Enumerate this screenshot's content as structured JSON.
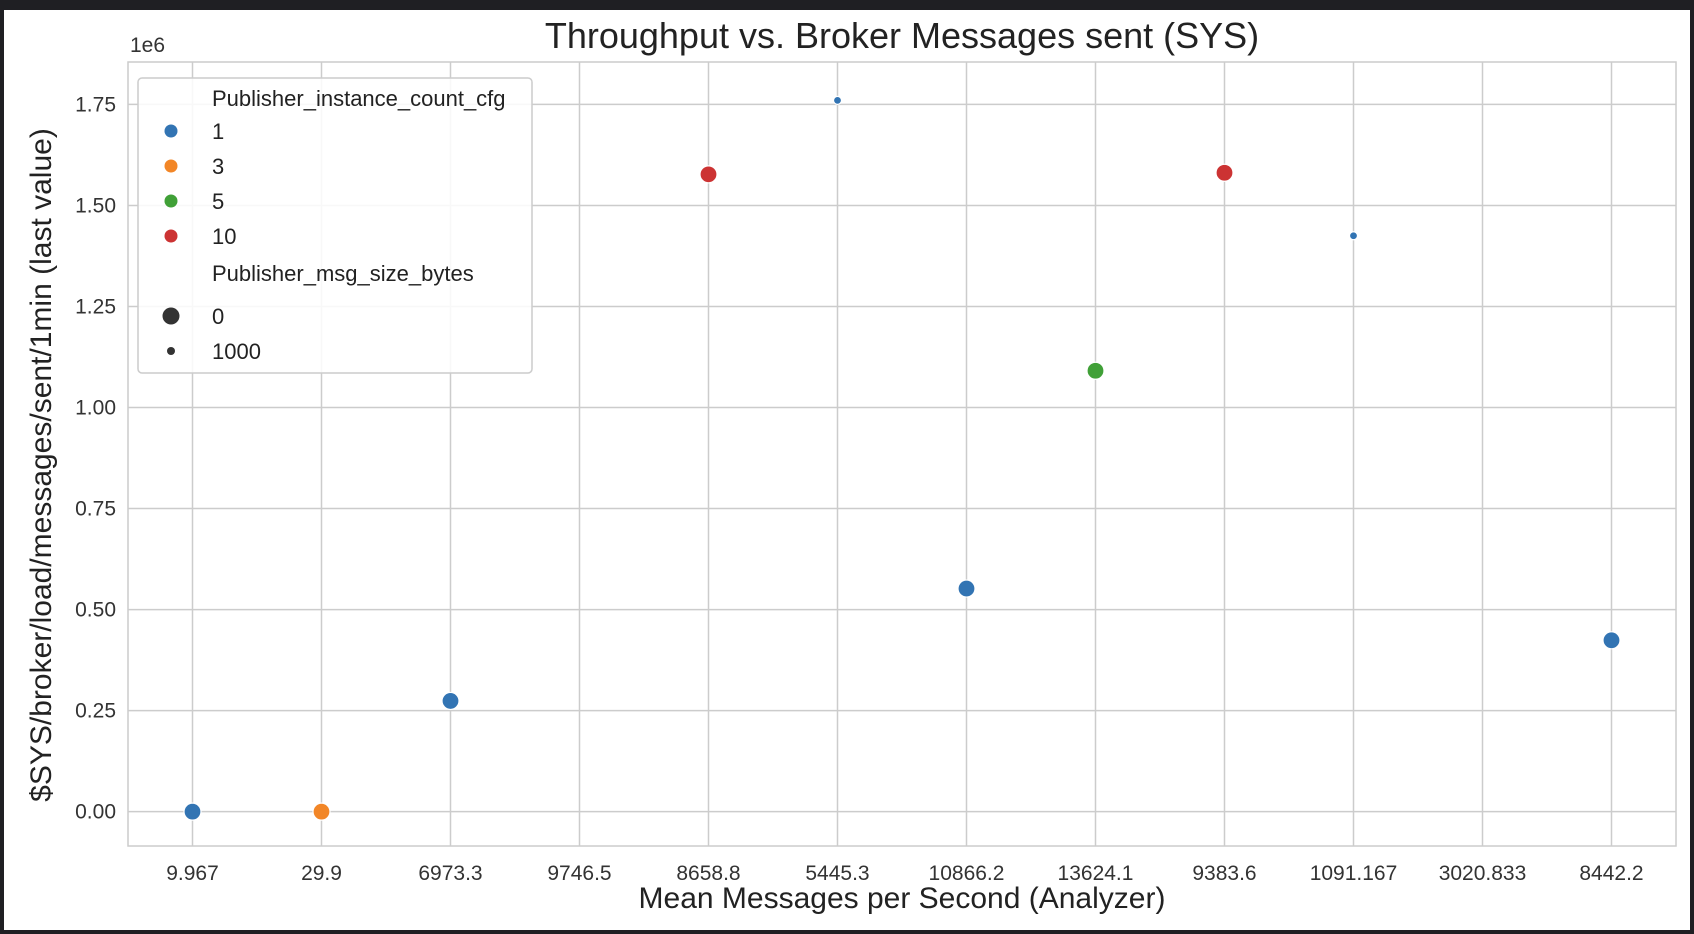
{
  "chart_data": {
    "type": "scatter",
    "title": "Throughput vs. Broker Messages sent (SYS)",
    "xlabel": "Mean Messages per Second (Analyzer)",
    "ylabel": "$SYS/broker/load/messages/sent/1min (last value)",
    "y_offset_label": "1e6",
    "x_scale": "categorical",
    "categories": [
      "9.967",
      "29.9",
      "6973.3",
      "9746.5",
      "8658.8",
      "5445.3",
      "10866.2",
      "13624.1",
      "9383.6",
      "1091.167",
      "3020.833",
      "8442.2"
    ],
    "ylim": [
      -85000,
      1855000
    ],
    "yticks": [
      0,
      250000,
      500000,
      750000,
      1000000,
      1250000,
      1500000,
      1750000
    ],
    "ytick_labels": [
      "0.00",
      "0.25",
      "0.50",
      "0.75",
      "1.00",
      "1.25",
      "1.50",
      "1.75"
    ],
    "grid": true,
    "legend_position": "upper-left",
    "hue_legend": {
      "title": "Publisher_instance_count_cfg",
      "entries": [
        {
          "label": "1",
          "color": "#3274b3"
        },
        {
          "label": "3",
          "color": "#f28627"
        },
        {
          "label": "5",
          "color": "#40a037"
        },
        {
          "label": "10",
          "color": "#cc3333"
        }
      ]
    },
    "size_legend": {
      "title": "Publisher_msg_size_bytes",
      "entries": [
        {
          "label": "0",
          "size": "large"
        },
        {
          "label": "1000",
          "size": "small"
        }
      ]
    },
    "points": [
      {
        "x": "9.967",
        "y": 0,
        "instances": "1",
        "msg_size": "0"
      },
      {
        "x": "29.9",
        "y": 0,
        "instances": "3",
        "msg_size": "0"
      },
      {
        "x": "6973.3",
        "y": 274000,
        "instances": "1",
        "msg_size": "0"
      },
      {
        "x": "8658.8",
        "y": 1577000,
        "instances": "10",
        "msg_size": "0"
      },
      {
        "x": "5445.3",
        "y": 1760000,
        "instances": "1",
        "msg_size": "1000"
      },
      {
        "x": "10866.2",
        "y": 552000,
        "instances": "1",
        "msg_size": "0"
      },
      {
        "x": "13624.1",
        "y": 1091000,
        "instances": "5",
        "msg_size": "0"
      },
      {
        "x": "9383.6",
        "y": 1581000,
        "instances": "10",
        "msg_size": "0"
      },
      {
        "x": "1091.167",
        "y": 1425000,
        "instances": "1",
        "msg_size": "1000"
      },
      {
        "x": "8442.2",
        "y": 424000,
        "instances": "1",
        "msg_size": "0"
      }
    ]
  }
}
